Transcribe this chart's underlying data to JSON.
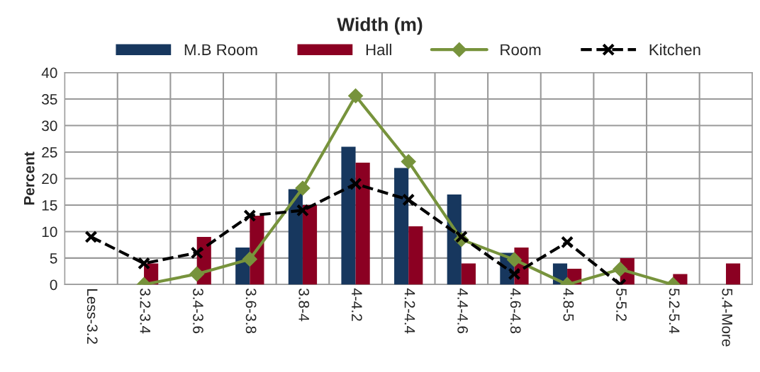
{
  "chart_data": {
    "type": "bar",
    "title": "Width (m)",
    "xlabel": null,
    "ylabel": "Percent",
    "categories": [
      "Less-3.2",
      "3.2-3.4",
      "3.4-3.6",
      "3.6-3.8",
      "3.8-4",
      "4-4.2",
      "4.2-4.4",
      "4.4-4.6",
      "4.6-4.8",
      "4.8-5",
      "5-5.2",
      "5.2-5.4",
      "5.4-More"
    ],
    "series": [
      {
        "name": "M.B Room",
        "color": "#17375e",
        "values": [
          null,
          null,
          null,
          7,
          18,
          26,
          22,
          17,
          6,
          4,
          null,
          null,
          null
        ]
      },
      {
        "name": "Hall",
        "color": "#8b0022",
        "values": [
          null,
          4,
          9,
          13,
          15,
          23,
          11,
          4,
          7,
          3,
          5,
          2,
          4
        ]
      },
      {
        "name": "Room",
        "type": "line",
        "color": "#77933c",
        "marker": "diamond",
        "line_style": "solid",
        "values": [
          null,
          0,
          2,
          4.8,
          18.2,
          35.6,
          23.2,
          8.5,
          4.7,
          0,
          2.9,
          0,
          null
        ]
      },
      {
        "name": "Kitchen",
        "type": "line",
        "color": "#000000",
        "marker": "cross",
        "line_style": "dashed",
        "values": [
          9,
          4,
          6,
          13,
          14,
          19,
          16,
          9,
          2,
          8,
          0,
          null,
          null
        ]
      }
    ],
    "ylim": [
      0,
      40
    ],
    "yticks": [
      0,
      5,
      10,
      15,
      20,
      25,
      30,
      35,
      40
    ],
    "grid": true,
    "legend": "top"
  }
}
